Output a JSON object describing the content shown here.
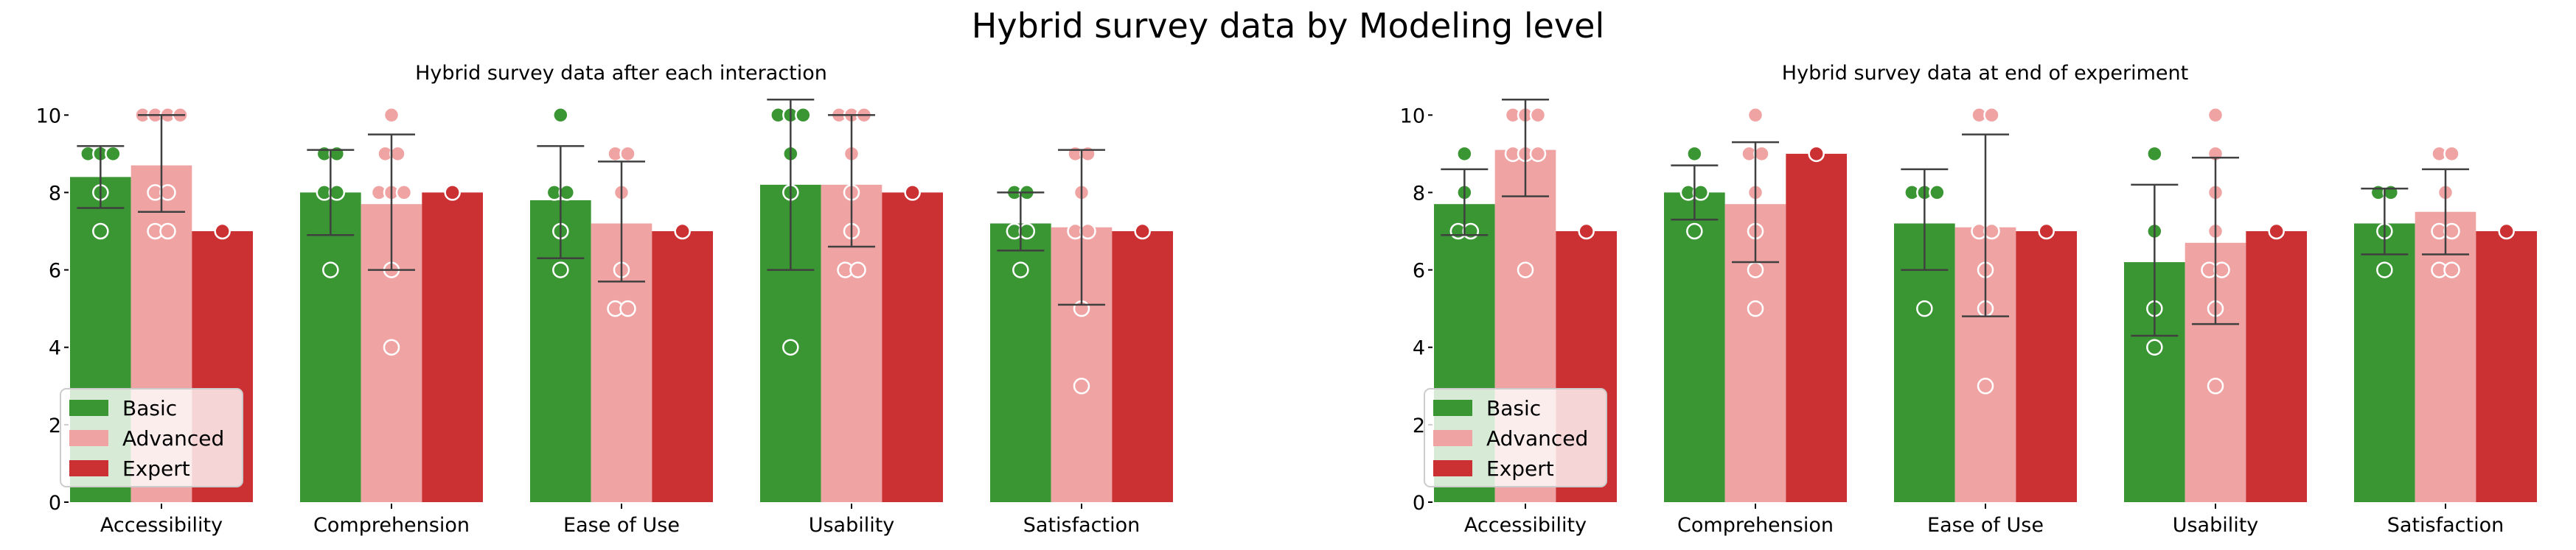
{
  "figure": {
    "title": "Hybrid survey data by Modeling level"
  },
  "legend": {
    "location": "lower-left",
    "entries": [
      {
        "label": "Basic",
        "color": "#3a9533"
      },
      {
        "label": "Advanced",
        "color": "#f0a3a3"
      },
      {
        "label": "Expert",
        "color": "#cb3133"
      }
    ]
  },
  "chart_data": [
    {
      "type": "bar",
      "title": "Hybrid survey data after each interaction",
      "categories": [
        "Accessibility",
        "Comprehension",
        "Ease of Use",
        "Usability",
        "Satisfaction"
      ],
      "ylim": [
        0,
        10.5
      ],
      "yticks": [
        0,
        2,
        4,
        6,
        8,
        10
      ],
      "grid": false,
      "legend": "lower-left",
      "series": [
        {
          "name": "Basic",
          "color": "#3a9533",
          "values": [
            8.4,
            8.0,
            7.8,
            8.2,
            7.2
          ],
          "ci": [
            [
              7.6,
              9.2
            ],
            [
              6.9,
              9.1
            ],
            [
              6.3,
              9.2
            ],
            [
              6.0,
              10.4
            ],
            [
              6.5,
              8.0
            ]
          ],
          "points": [
            [
              9,
              9,
              9,
              8,
              7
            ],
            [
              9,
              9,
              8,
              8,
              6
            ],
            [
              10,
              8,
              8,
              7,
              6
            ],
            [
              10,
              10,
              10,
              9,
              8,
              4
            ],
            [
              8,
              8,
              7,
              7,
              6
            ]
          ]
        },
        {
          "name": "Advanced",
          "color": "#f0a3a3",
          "values": [
            8.7,
            7.7,
            7.2,
            8.2,
            7.1
          ],
          "ci": [
            [
              7.5,
              10.0
            ],
            [
              6.0,
              9.5
            ],
            [
              5.7,
              8.8
            ],
            [
              6.6,
              10.0
            ],
            [
              5.1,
              9.1
            ]
          ],
          "points": [
            [
              10,
              10,
              10,
              10,
              8,
              8,
              7,
              7
            ],
            [
              10,
              9,
              9,
              8,
              8,
              8,
              6,
              4
            ],
            [
              9,
              9,
              8,
              6,
              5,
              5
            ],
            [
              10,
              10,
              10,
              9,
              8,
              7,
              6,
              6
            ],
            [
              9,
              9,
              8,
              7,
              7,
              5,
              3
            ]
          ]
        },
        {
          "name": "Expert",
          "color": "#cb3133",
          "values": [
            7.0,
            8.0,
            7.0,
            8.0,
            7.0
          ],
          "ci": [
            null,
            null,
            null,
            null,
            null
          ],
          "points": [
            [
              7
            ],
            [
              8
            ],
            [
              7
            ],
            [
              8
            ],
            [
              7
            ]
          ]
        }
      ]
    },
    {
      "type": "bar",
      "title": "Hybrid survey data at end of experiment",
      "categories": [
        "Accessibility",
        "Comprehension",
        "Ease of Use",
        "Usability",
        "Satisfaction"
      ],
      "ylim": [
        0,
        10.5
      ],
      "yticks": [
        0,
        2,
        4,
        6,
        8,
        10
      ],
      "grid": false,
      "legend": "lower-left",
      "series": [
        {
          "name": "Basic",
          "color": "#3a9533",
          "values": [
            7.7,
            8.0,
            7.2,
            6.2,
            7.2
          ],
          "ci": [
            [
              6.9,
              8.6
            ],
            [
              7.3,
              8.7
            ],
            [
              6.0,
              8.6
            ],
            [
              4.3,
              8.2
            ],
            [
              6.4,
              8.1
            ]
          ],
          "points": [
            [
              9,
              8,
              7,
              7
            ],
            [
              9,
              8,
              8,
              7
            ],
            [
              8,
              8,
              8,
              5
            ],
            [
              9,
              7,
              5,
              4
            ],
            [
              8,
              8,
              7,
              6
            ]
          ]
        },
        {
          "name": "Advanced",
          "color": "#f0a3a3",
          "values": [
            9.1,
            7.7,
            7.1,
            6.7,
            7.5
          ],
          "ci": [
            [
              7.9,
              10.4
            ],
            [
              6.2,
              9.3
            ],
            [
              4.8,
              9.5
            ],
            [
              4.6,
              8.9
            ],
            [
              6.4,
              8.6
            ]
          ],
          "points": [
            [
              10,
              10,
              10,
              9,
              9,
              9,
              6
            ],
            [
              10,
              9,
              9,
              8,
              7,
              6,
              5
            ],
            [
              10,
              10,
              7,
              7,
              6,
              5,
              3
            ],
            [
              10,
              9,
              8,
              7,
              6,
              6,
              5,
              3
            ],
            [
              9,
              9,
              8,
              7,
              7,
              6,
              6
            ]
          ]
        },
        {
          "name": "Expert",
          "color": "#cb3133",
          "values": [
            7.0,
            9.0,
            7.0,
            7.0,
            7.0
          ],
          "ci": [
            null,
            null,
            null,
            null,
            null
          ],
          "points": [
            [
              7
            ],
            [
              9
            ],
            [
              7
            ],
            [
              7
            ],
            [
              7
            ]
          ]
        }
      ]
    }
  ]
}
